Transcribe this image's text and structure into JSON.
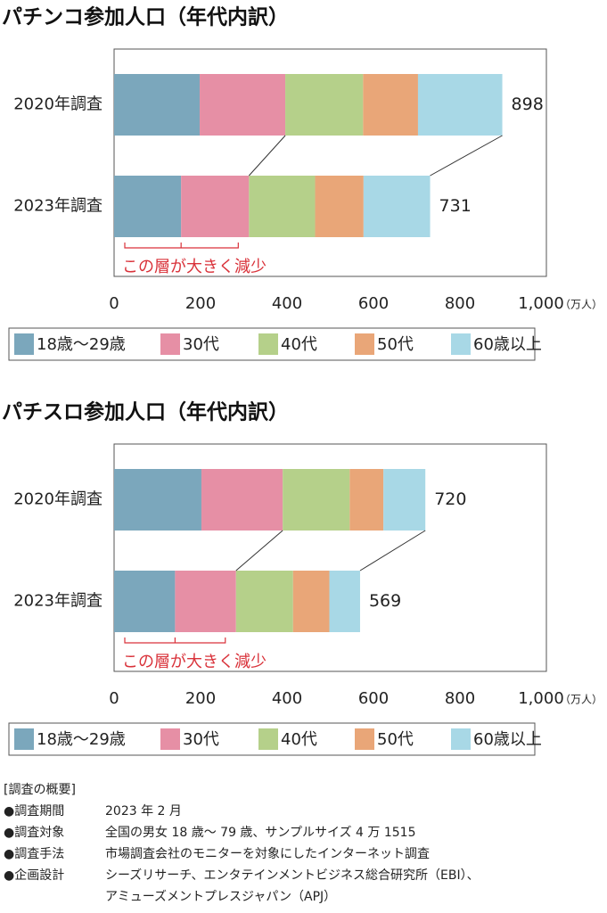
{
  "chart_data": [
    {
      "type": "stacked-bar-h",
      "title": "パチンコ参加人口（年代内訳）",
      "categories": [
        "2020年調査",
        "2023年調査"
      ],
      "series": [
        {
          "name": "18歳〜29歳",
          "color": "#7ba7bc",
          "values": [
            198,
            155
          ]
        },
        {
          "name": "30代",
          "color": "#e68fa5",
          "values": [
            198,
            157
          ]
        },
        {
          "name": "40代",
          "color": "#b5d08a",
          "values": [
            180,
            153
          ]
        },
        {
          "name": "50代",
          "color": "#e9a678",
          "values": [
            127,
            112
          ]
        },
        {
          "name": "60歳以上",
          "color": "#a8d8e6",
          "values": [
            195,
            154
          ]
        }
      ],
      "totals": [
        898,
        731
      ],
      "annotation": "この層が大きく減少",
      "xlim": [
        0,
        1000
      ],
      "xticks": [
        0,
        200,
        400,
        600,
        800,
        {
          "value": 1000,
          "label": "1,000"
        }
      ],
      "unit": "（万人）"
    },
    {
      "type": "stacked-bar-h",
      "title": "パチスロ参加人口（年代内訳）",
      "categories": [
        "2020年調査",
        "2023年調査"
      ],
      "series": [
        {
          "name": "18歳〜29歳",
          "color": "#7ba7bc",
          "values": [
            202,
            141
          ]
        },
        {
          "name": "30代",
          "color": "#e68fa5",
          "values": [
            188,
            141
          ]
        },
        {
          "name": "40代",
          "color": "#b5d08a",
          "values": [
            155,
            132
          ]
        },
        {
          "name": "50代",
          "color": "#e9a678",
          "values": [
            78,
            84
          ]
        },
        {
          "name": "60歳以上",
          "color": "#a8d8e6",
          "values": [
            97,
            71
          ]
        }
      ],
      "totals": [
        720,
        569
      ],
      "annotation": "この層が大きく減少",
      "xlim": [
        0,
        1000
      ],
      "xticks": [
        0,
        200,
        400,
        600,
        800,
        {
          "value": 1000,
          "label": "1,000"
        }
      ],
      "unit": "（万人）"
    }
  ],
  "footnote": {
    "header": "[調査の概要]",
    "items": [
      {
        "label": "●調査期間",
        "lines": [
          "2023 年 2 月"
        ]
      },
      {
        "label": "●調査対象",
        "lines": [
          "全国の男女 18 歳〜 79 歳、サンプルサイズ 4 万 1515"
        ]
      },
      {
        "label": "●調査手法",
        "lines": [
          "市場調査会社のモニターを対象にしたインターネット調査"
        ]
      },
      {
        "label": "●企画設計",
        "lines": [
          "シーズリサーチ、エンタテインメントビジネス総合研究所（EBI）、",
          "アミューズメントプレスジャパン（APJ）"
        ]
      }
    ]
  }
}
